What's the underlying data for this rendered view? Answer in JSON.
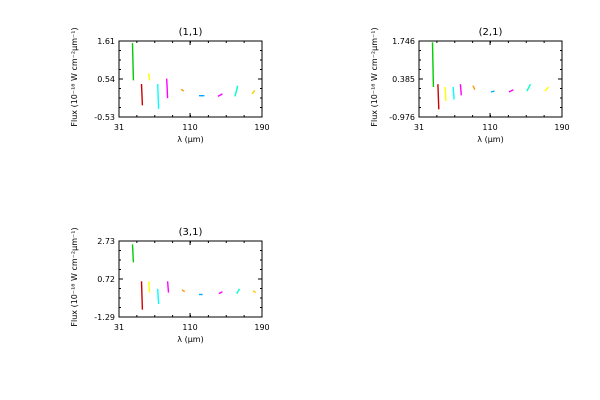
{
  "chart_data": [
    {
      "type": "line",
      "title": "(1,1)",
      "xlabel": "λ (μm)",
      "ylabel": "Flux (10⁻¹⁸ W cm⁻²μm⁻¹)",
      "xticks": [
        "31",
        "110",
        "190"
      ],
      "yticks": [
        "-0.53",
        "0.54",
        "1.61"
      ],
      "xlim": [
        31,
        190
      ],
      "ylim": [
        -0.53,
        1.61
      ],
      "segments": [
        {
          "color": "#00cc00",
          "x": [
            46,
            47
          ],
          "y": [
            1.55,
            0.5
          ]
        },
        {
          "color": "#cc0000",
          "x": [
            56,
            57
          ],
          "y": [
            0.4,
            -0.2
          ]
        },
        {
          "color": "#ffff00",
          "x": [
            64,
            65
          ],
          "y": [
            0.7,
            0.5
          ]
        },
        {
          "color": "#00ffff",
          "x": [
            74,
            75
          ],
          "y": [
            0.4,
            -0.3
          ]
        },
        {
          "color": "#ff00ff",
          "x": [
            84,
            85
          ],
          "y": [
            0.55,
            0.0
          ]
        },
        {
          "color": "#ff9900",
          "x": [
            100,
            103
          ],
          "y": [
            0.25,
            0.2
          ]
        },
        {
          "color": "#00aaff",
          "x": [
            120,
            126
          ],
          "y": [
            0.07,
            0.07
          ]
        },
        {
          "color": "#ff00ff",
          "x": [
            141,
            146
          ],
          "y": [
            0.05,
            0.12
          ]
        },
        {
          "color": "#00ffcc",
          "x": [
            160,
            163
          ],
          "y": [
            0.05,
            0.35
          ]
        },
        {
          "color": "#ffcc00",
          "x": [
            179,
            182
          ],
          "y": [
            0.12,
            0.22
          ]
        }
      ]
    },
    {
      "type": "line",
      "title": "(2,1)",
      "xlabel": "λ (μm)",
      "ylabel": "Flux (10⁻¹⁸ W cm⁻²μm⁻¹)",
      "xticks": [
        "31",
        "110",
        "190"
      ],
      "yticks": [
        "-0.976",
        "0.385",
        "1.746"
      ],
      "xlim": [
        31,
        190
      ],
      "ylim": [
        -0.976,
        1.746
      ],
      "segments": [
        {
          "color": "#00cc00",
          "x": [
            46,
            47
          ],
          "y": [
            1.7,
            0.1
          ]
        },
        {
          "color": "#cc0000",
          "x": [
            52,
            53
          ],
          "y": [
            0.2,
            -0.7
          ]
        },
        {
          "color": "#ffff00",
          "x": [
            60,
            61
          ],
          "y": [
            0.1,
            -0.4
          ]
        },
        {
          "color": "#00ffff",
          "x": [
            69,
            70
          ],
          "y": [
            0.1,
            -0.35
          ]
        },
        {
          "color": "#ff00ff",
          "x": [
            77,
            78
          ],
          "y": [
            0.2,
            -0.2
          ]
        },
        {
          "color": "#ff9900",
          "x": [
            91,
            93
          ],
          "y": [
            0.15,
            0.0
          ]
        },
        {
          "color": "#00aaff",
          "x": [
            111,
            115
          ],
          "y": [
            -0.08,
            -0.05
          ]
        },
        {
          "color": "#ff00ff",
          "x": [
            131,
            136
          ],
          "y": [
            -0.08,
            0.0
          ]
        },
        {
          "color": "#00ffcc",
          "x": [
            151,
            155
          ],
          "y": [
            -0.05,
            0.2
          ]
        },
        {
          "color": "#ffff00",
          "x": [
            171,
            175
          ],
          "y": [
            -0.05,
            0.1
          ]
        }
      ]
    },
    {
      "type": "line",
      "title": "(3,1)",
      "xlabel": "λ (μm)",
      "ylabel": "Flux (10⁻¹⁸ W cm⁻²μm⁻¹)",
      "xticks": [
        "31",
        "110",
        "190"
      ],
      "yticks": [
        "-1.29",
        "0.72",
        "2.73"
      ],
      "xlim": [
        31,
        190
      ],
      "ylim": [
        -1.29,
        2.73
      ],
      "segments": [
        {
          "color": "#00cc00",
          "x": [
            46,
            47
          ],
          "y": [
            2.55,
            1.6
          ]
        },
        {
          "color": "#cc0000",
          "x": [
            56,
            57
          ],
          "y": [
            0.6,
            -0.9
          ]
        },
        {
          "color": "#ffff00",
          "x": [
            64,
            65
          ],
          "y": [
            0.6,
            0.0
          ]
        },
        {
          "color": "#00ffff",
          "x": [
            74,
            75
          ],
          "y": [
            0.2,
            -0.6
          ]
        },
        {
          "color": "#ff00ff",
          "x": [
            85,
            86
          ],
          "y": [
            0.6,
            0.0
          ]
        },
        {
          "color": "#ff9900",
          "x": [
            101,
            104
          ],
          "y": [
            0.15,
            0.05
          ]
        },
        {
          "color": "#00aaff",
          "x": [
            120,
            124
          ],
          "y": [
            -0.1,
            -0.1
          ]
        },
        {
          "color": "#ff00ff",
          "x": [
            142,
            146
          ],
          "y": [
            -0.05,
            0.05
          ]
        },
        {
          "color": "#00ffcc",
          "x": [
            162,
            165
          ],
          "y": [
            -0.05,
            0.2
          ]
        },
        {
          "color": "#ffcc00",
          "x": [
            180,
            183
          ],
          "y": [
            0.1,
            0.0
          ]
        }
      ]
    }
  ]
}
